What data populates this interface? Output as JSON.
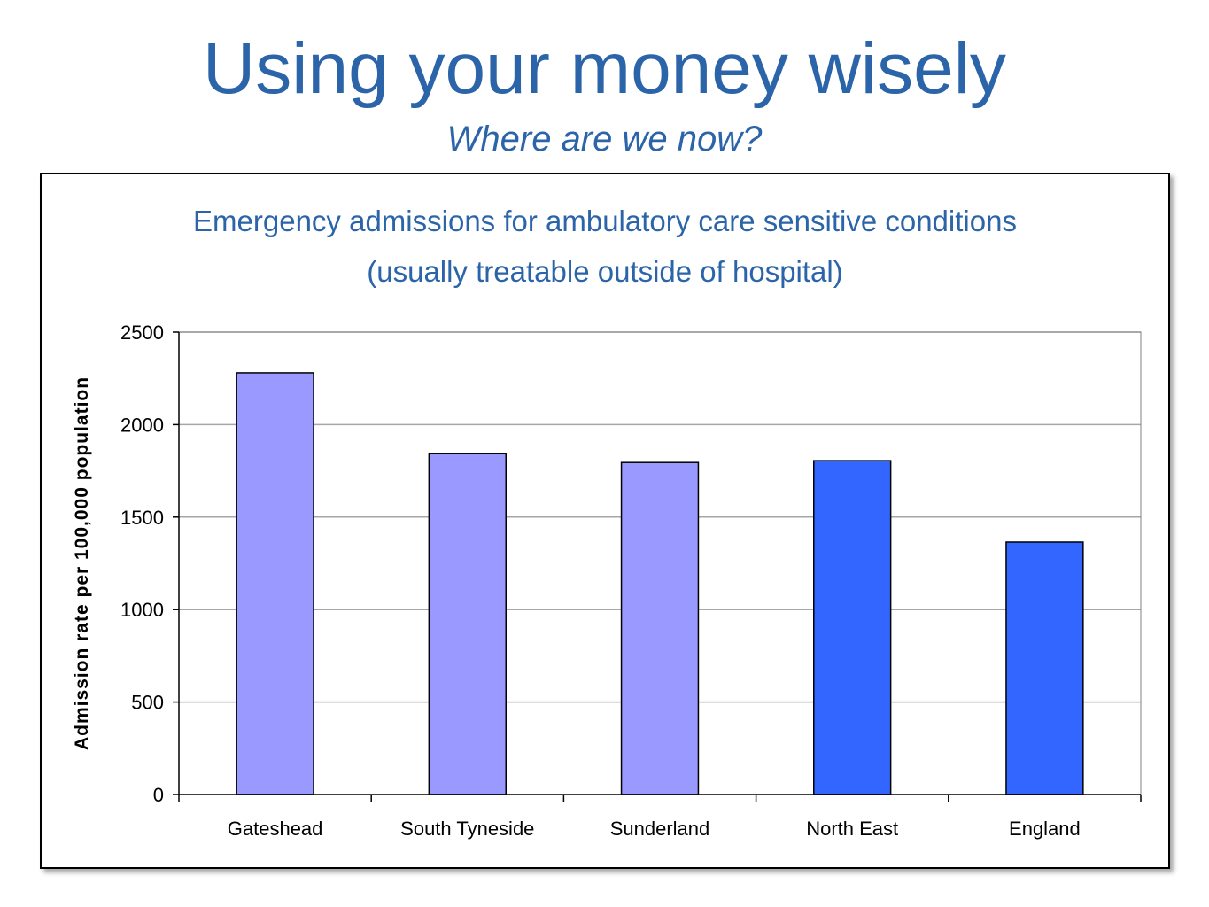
{
  "slide": {
    "title": "Using your money wisely",
    "subtitle": "Where are we now?"
  },
  "chart_data": {
    "type": "bar",
    "title_line1": "Emergency admissions for ambulatory care sensitive conditions",
    "title_line2": "(usually treatable outside of hospital)",
    "xlabel": "",
    "ylabel": "Admission rate per 100,000 population",
    "categories": [
      "Gateshead",
      "South Tyneside",
      "Sunderland",
      "North East",
      "England"
    ],
    "values": [
      2280,
      1845,
      1795,
      1805,
      1365
    ],
    "bar_colors": [
      "#9999ff",
      "#9999ff",
      "#9999ff",
      "#3366ff",
      "#3366ff"
    ],
    "ylim": [
      0,
      2500
    ],
    "yticks": [
      0,
      500,
      1000,
      1500,
      2000,
      2500
    ],
    "grid": true,
    "legend": "none"
  }
}
